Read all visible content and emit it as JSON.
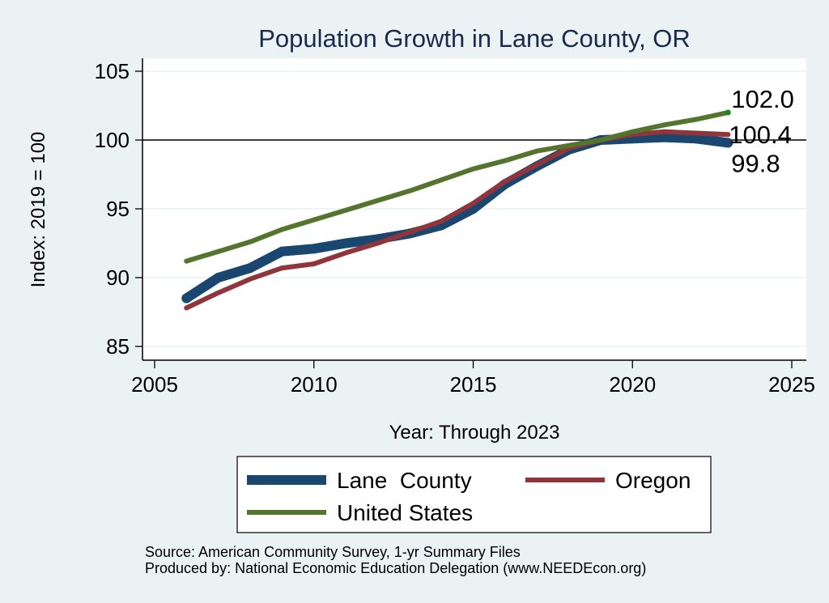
{
  "chart_data": {
    "type": "line",
    "title": "Population Growth in Lane County, OR",
    "xlabel": "Year: Through 2023",
    "ylabel": "Index: 2019 = 100",
    "xlim": [
      2005,
      2025
    ],
    "ylim": [
      85,
      105
    ],
    "xticks": [
      2005,
      2010,
      2015,
      2020,
      2025
    ],
    "yticks": [
      85,
      90,
      95,
      100,
      105
    ],
    "xtick_labels": [
      "2005",
      "2010",
      "2015",
      "2020",
      "2025"
    ],
    "ytick_labels": [
      "85",
      "90",
      "95",
      "100",
      "105"
    ],
    "grid": "horizontal",
    "reference_line": 100,
    "x": [
      2006,
      2007,
      2008,
      2009,
      2010,
      2011,
      2012,
      2013,
      2014,
      2015,
      2016,
      2017,
      2018,
      2019,
      2020,
      2021,
      2022,
      2023
    ],
    "series": [
      {
        "name": "Lane  County",
        "color": "#1a476f",
        "values": [
          88.5,
          90.0,
          90.7,
          91.9,
          92.1,
          92.5,
          92.8,
          93.2,
          93.8,
          95.0,
          96.8,
          98.1,
          99.3,
          100.0,
          100.1,
          100.2,
          100.1,
          99.8
        ],
        "end_label": "99.8"
      },
      {
        "name": "Oregon",
        "color": "#90353b",
        "values": [
          87.8,
          88.9,
          89.9,
          90.7,
          91.0,
          91.8,
          92.5,
          93.3,
          94.1,
          95.4,
          97.0,
          98.2,
          99.4,
          100.0,
          100.4,
          100.6,
          100.5,
          100.4
        ],
        "end_label": "100.4"
      },
      {
        "name": "United States",
        "color": "#55752f",
        "values": [
          91.2,
          91.9,
          92.6,
          93.5,
          94.2,
          94.9,
          95.6,
          96.3,
          97.1,
          97.9,
          98.5,
          99.2,
          99.6,
          100.0,
          100.6,
          101.1,
          101.5,
          102.0
        ],
        "end_label": "102.0"
      }
    ],
    "legend": {
      "placement": "bottom",
      "entries": [
        "Lane  County",
        "Oregon",
        "United States"
      ]
    },
    "notes": [
      "Source: American Community Survey, 1-yr Summary Files",
      "Produced by: National Economic Education Delegation (www.NEEDEcon.org)"
    ]
  },
  "colors": {
    "background": "#eaf2f3",
    "plot_background": "#ffffff",
    "title": "#1a2a4f",
    "endpoint_marker": "#1b8a1b"
  }
}
